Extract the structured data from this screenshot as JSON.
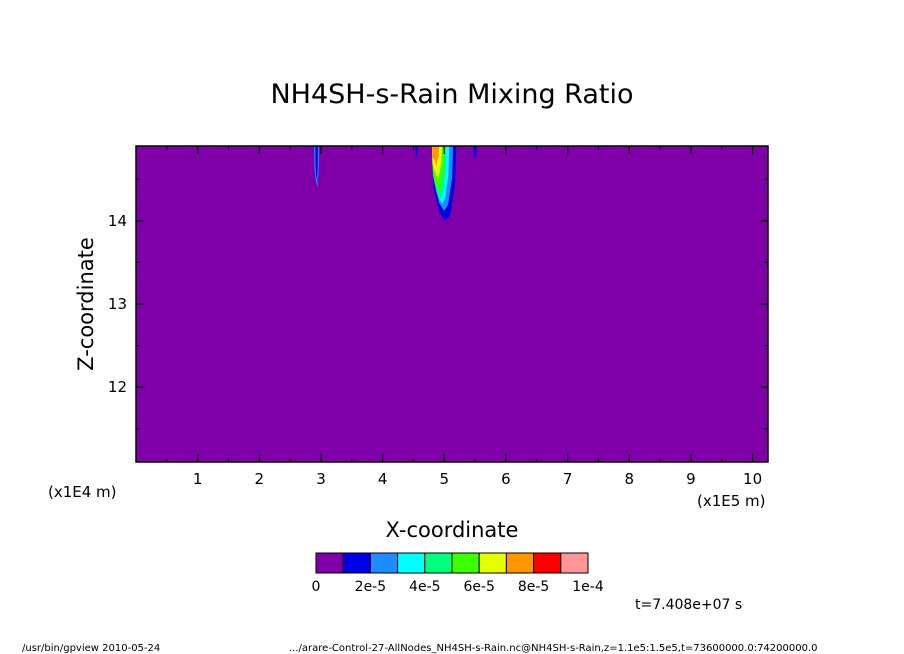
{
  "chart_data": {
    "type": "heatmap",
    "title": "NH4SH-s-Rain Mixing Ratio",
    "xlabel": "X-coordinate",
    "ylabel": "Z-coordinate",
    "x_unit_note": "(x1E5 m)",
    "y_unit_note": "(x1E4 m)",
    "xlim": [
      0,
      10.25
    ],
    "ylim": [
      11.1,
      14.9
    ],
    "x_ticks": [
      "1",
      "2",
      "3",
      "4",
      "5",
      "6",
      "7",
      "8",
      "9",
      "10"
    ],
    "y_ticks": [
      "12",
      "13",
      "14"
    ],
    "background_level": 0,
    "colorbar": {
      "colors": [
        "#7f00a8",
        "#0000e6",
        "#1e8cff",
        "#00ffff",
        "#00ff7f",
        "#3cff00",
        "#e6ff00",
        "#ff9600",
        "#ff0000",
        "#ff9696"
      ],
      "labels": [
        "0",
        "2e-5",
        "4e-5",
        "6e-5",
        "8e-5",
        "1e-4"
      ]
    },
    "features": [
      {
        "x_center": 2.93,
        "z_top": 14.9,
        "z_bottom": 14.4,
        "max_level": "2e-5"
      },
      {
        "x_center": 4.9,
        "z_top": 14.9,
        "z_bottom": 14.0,
        "max_level": "8e-5"
      },
      {
        "x_center": 5.5,
        "z_top": 14.9,
        "z_bottom": 14.7,
        "max_level": "2e-5"
      }
    ]
  },
  "time_label": "t=7.408e+07 s",
  "footer": {
    "left": "/usr/bin/gpview  2010-05-24",
    "right": ".../arare-Control-27-AllNodes_NH4SH-s-Rain.nc@NH4SH-s-Rain,z=1.1e5:1.5e5,t=73600000.0:74200000.0"
  }
}
